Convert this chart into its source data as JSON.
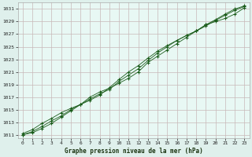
{
  "title": "Graphe pression niveau de la mer (hPa)",
  "background_color": "#dff0ec",
  "plot_bg_color": "#e8f8f4",
  "grid_color": "#c8b8b8",
  "line_color": "#1a5c1a",
  "marker_color": "#1a5c1a",
  "ylim": [
    1010.5,
    1032
  ],
  "xlim": [
    -0.5,
    23.5
  ],
  "yticks": [
    1011,
    1013,
    1015,
    1017,
    1019,
    1021,
    1023,
    1025,
    1027,
    1029,
    1031
  ],
  "xticks": [
    0,
    1,
    2,
    3,
    4,
    5,
    6,
    7,
    8,
    9,
    10,
    11,
    12,
    13,
    14,
    15,
    16,
    17,
    18,
    19,
    20,
    21,
    22,
    23
  ],
  "series1": [
    1011.2,
    1011.8,
    1012.8,
    1013.6,
    1014.5,
    1015.2,
    1015.8,
    1016.5,
    1017.3,
    1018.5,
    1019.8,
    1021.0,
    1022.0,
    1023.2,
    1024.3,
    1025.2,
    1026.0,
    1026.8,
    1027.5,
    1028.3,
    1029.2,
    1030.0,
    1030.8,
    1031.4
  ],
  "series2": [
    1011.0,
    1011.5,
    1012.3,
    1013.2,
    1014.0,
    1015.0,
    1015.8,
    1016.7,
    1017.5,
    1018.2,
    1019.5,
    1020.5,
    1021.5,
    1022.8,
    1024.0,
    1025.0,
    1026.0,
    1026.8,
    1027.5,
    1028.5,
    1029.3,
    1030.2,
    1031.0,
    1031.5
  ],
  "series3": [
    1011.0,
    1011.3,
    1012.0,
    1012.8,
    1013.8,
    1014.8,
    1015.8,
    1017.0,
    1017.8,
    1018.4,
    1019.2,
    1020.0,
    1021.0,
    1022.5,
    1023.5,
    1024.5,
    1025.5,
    1026.5,
    1027.5,
    1028.5,
    1029.0,
    1029.5,
    1030.2,
    1031.2
  ]
}
